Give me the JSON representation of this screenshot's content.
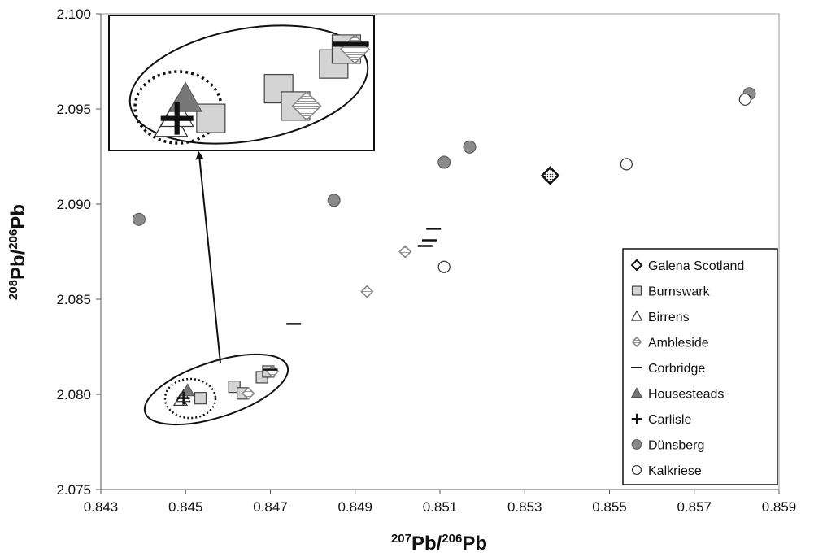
{
  "chart_data": {
    "type": "scatter",
    "title": "",
    "xlabel": {
      "sup1": "207",
      "main1": "Pb/",
      "sup2": "206",
      "main2": "Pb"
    },
    "ylabel": {
      "sup1": "208",
      "main1": "Pb/",
      "sup2": "206",
      "main2": "Pb"
    },
    "xlim": [
      0.843,
      0.859
    ],
    "ylim": [
      2.075,
      2.1
    ],
    "xticks": [
      "0.843",
      "0.845",
      "0.847",
      "0.849",
      "0.851",
      "0.853",
      "0.855",
      "0.857",
      "0.859"
    ],
    "yticks": [
      "2.075",
      "2.080",
      "2.085",
      "2.090",
      "2.095",
      "2.100"
    ],
    "grid": false,
    "legend_position": "bottom-right",
    "series": [
      {
        "name": "Galena Scotland",
        "marker": "diamond-dotted",
        "points": [
          [
            0.8536,
            2.0915
          ]
        ]
      },
      {
        "name": "Burnswark",
        "marker": "square",
        "points": [
          [
            0.84535,
            2.0798
          ],
          [
            0.84615,
            2.0804
          ],
          [
            0.84635,
            2.08005
          ],
          [
            0.8468,
            2.0809
          ],
          [
            0.84695,
            2.0812
          ]
        ]
      },
      {
        "name": "Birrens",
        "marker": "triangle-open",
        "points": [
          [
            0.84488,
            2.0797
          ],
          [
            0.84495,
            2.0799
          ]
        ]
      },
      {
        "name": "Ambleside",
        "marker": "diamond-open",
        "points": [
          [
            0.84648,
            2.08005
          ],
          [
            0.84705,
            2.0812
          ],
          [
            0.84928,
            2.0854
          ],
          [
            0.85018,
            2.0875
          ]
        ]
      },
      {
        "name": "Corbridge",
        "marker": "dash",
        "points": [
          [
            0.84755,
            2.0837
          ],
          [
            0.85065,
            2.0878
          ],
          [
            0.85075,
            2.0881
          ],
          [
            0.85085,
            2.0887
          ],
          [
            0.847,
            2.0813
          ]
        ]
      },
      {
        "name": "Housesteads",
        "marker": "triangle-filled",
        "points": [
          [
            0.84505,
            2.0802
          ]
        ]
      },
      {
        "name": "Carlisle",
        "marker": "plus",
        "points": [
          [
            0.84495,
            2.0798
          ]
        ]
      },
      {
        "name": "Dünsberg",
        "marker": "circle-filled",
        "points": [
          [
            0.8439,
            2.0892
          ],
          [
            0.8485,
            2.0902
          ],
          [
            0.8511,
            2.0922
          ],
          [
            0.8517,
            2.093
          ],
          [
            0.8583,
            2.0958
          ]
        ]
      },
      {
        "name": "Kalkriese",
        "marker": "circle-open",
        "points": [
          [
            0.8511,
            2.0867
          ],
          [
            0.8554,
            2.0921
          ],
          [
            0.8582,
            2.0955
          ]
        ]
      }
    ],
    "annotations": [
      {
        "kind": "ellipse-outer",
        "description": "cluster highlighted"
      },
      {
        "kind": "ellipse-dotted",
        "description": "sub-cluster highlighted"
      },
      {
        "kind": "inset",
        "description": "magnified view of circled cluster"
      }
    ]
  },
  "colors": {
    "grey_fill": "#d4d4d4",
    "dark_grey": "#8a8a8a",
    "housesteads": "#777777",
    "black": "#111111",
    "white": "#ffffff"
  }
}
